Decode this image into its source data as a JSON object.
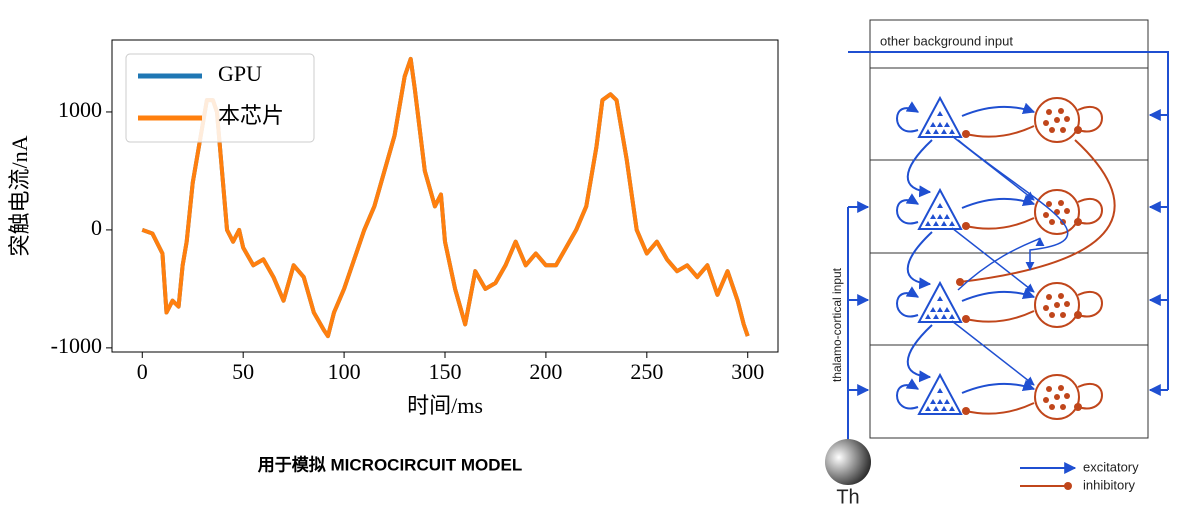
{
  "chart_data": {
    "type": "line",
    "x": [
      0,
      5,
      10,
      12,
      15,
      18,
      20,
      22,
      25,
      28,
      30,
      32,
      35,
      37,
      40,
      42,
      45,
      48,
      50,
      55,
      60,
      65,
      70,
      75,
      80,
      85,
      90,
      92,
      95,
      100,
      105,
      110,
      115,
      120,
      125,
      130,
      133,
      135,
      140,
      145,
      148,
      150,
      155,
      160,
      165,
      170,
      175,
      180,
      185,
      190,
      195,
      200,
      205,
      210,
      215,
      220,
      225,
      228,
      232,
      235,
      240,
      245,
      250,
      255,
      260,
      265,
      270,
      275,
      280,
      285,
      290,
      295,
      298,
      300
    ],
    "series": [
      {
        "name": "GPU",
        "color": "#1f77b4",
        "values": [
          0,
          -30,
          -200,
          -700,
          -600,
          -650,
          -300,
          -100,
          400,
          700,
          900,
          1100,
          1100,
          1000,
          400,
          0,
          -100,
          0,
          -150,
          -300,
          -250,
          -400,
          -600,
          -300,
          -400,
          -700,
          -850,
          -900,
          -700,
          -500,
          -250,
          0,
          200,
          500,
          800,
          1300,
          1450,
          1200,
          500,
          200,
          300,
          -100,
          -500,
          -800,
          -350,
          -500,
          -450,
          -300,
          -100,
          -300,
          -200,
          -300,
          -300,
          -150,
          0,
          200,
          700,
          1100,
          1150,
          1100,
          600,
          0,
          -200,
          -100,
          -250,
          -350,
          -300,
          -400,
          -300,
          -550,
          -350,
          -600,
          -800,
          -900
        ]
      },
      {
        "name": "本芯片",
        "color": "#ff7f0e",
        "values": [
          0,
          -30,
          -200,
          -700,
          -600,
          -650,
          -300,
          -100,
          400,
          700,
          900,
          1100,
          1100,
          1000,
          400,
          0,
          -100,
          0,
          -150,
          -300,
          -250,
          -400,
          -600,
          -300,
          -400,
          -700,
          -850,
          -900,
          -700,
          -500,
          -250,
          0,
          200,
          500,
          800,
          1300,
          1450,
          1200,
          500,
          200,
          300,
          -100,
          -500,
          -800,
          -350,
          -500,
          -450,
          -300,
          -100,
          -300,
          -200,
          -300,
          -300,
          -150,
          0,
          200,
          700,
          1100,
          1150,
          1100,
          600,
          0,
          -200,
          -100,
          -250,
          -350,
          -300,
          -400,
          -300,
          -550,
          -350,
          -600,
          -800,
          -900
        ]
      }
    ],
    "xlabel": "时间/ms",
    "ylabel": "突触电流/nA",
    "xlim": [
      -15,
      315
    ],
    "xticks": [
      0,
      50,
      100,
      150,
      200,
      250,
      300
    ],
    "ylim": [
      -1035,
      1610
    ],
    "yticks": [
      -1000,
      0,
      1000
    ],
    "legend": "upper left",
    "grid": false
  },
  "caption": "用于模拟 MICROCIRCUIT MODEL",
  "diagram": {
    "top_label": "other background input",
    "side_label": "thalamo-cortical input",
    "source": "Th",
    "legend": [
      "excitatory",
      "inhibitory"
    ]
  }
}
